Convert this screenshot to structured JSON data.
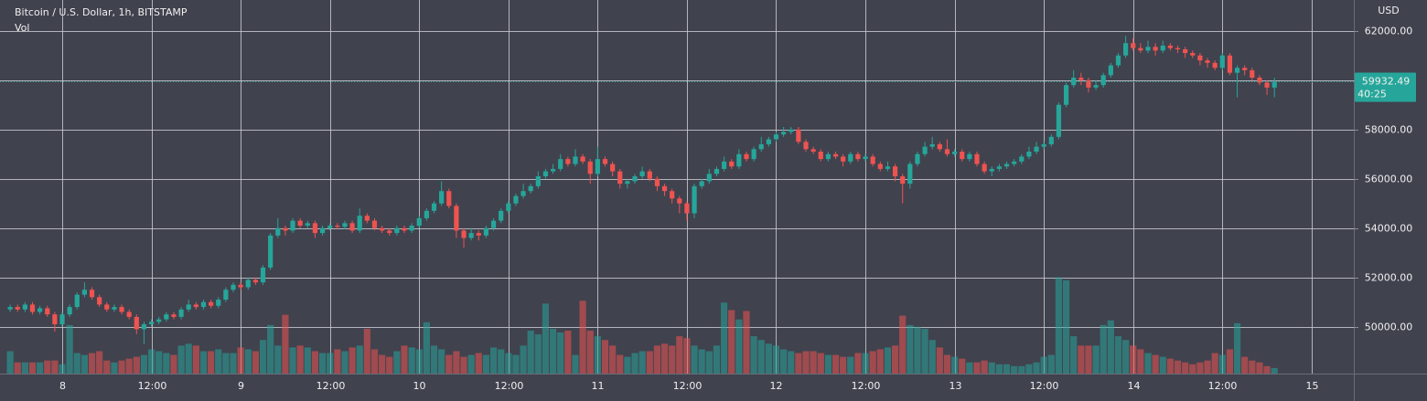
{
  "chart_data": {
    "type": "candlestick",
    "title": "Bitcoin / U.S. Dollar, 1h, BITSTAMP",
    "volume_label": "Vol",
    "currency": "USD",
    "up_color": "#26a69a",
    "down_color": "#ef5350",
    "grid": true,
    "ylim": [
      48100,
      63250
    ],
    "yticks": [
      {
        "value": 50000,
        "label": "50000.00"
      },
      {
        "value": 52000,
        "label": "52000.00"
      },
      {
        "value": 54000,
        "label": "54000.00"
      },
      {
        "value": 56000,
        "label": "56000.00"
      },
      {
        "value": 58000,
        "label": "58000.00"
      },
      {
        "value": 60000,
        "label": "60000.00"
      },
      {
        "value": 62000,
        "label": "62000.00"
      }
    ],
    "vlim": [
      0,
      400
    ],
    "last_price": 59932.49,
    "countdown": "40:25",
    "categories": [
      null,
      null,
      null,
      null,
      null,
      null,
      null,
      "8",
      null,
      null,
      null,
      null,
      null,
      null,
      null,
      null,
      null,
      null,
      null,
      "12:00",
      null,
      null,
      null,
      null,
      null,
      null,
      null,
      null,
      null,
      null,
      null,
      "9",
      null,
      null,
      null,
      null,
      null,
      null,
      null,
      null,
      null,
      null,
      null,
      "12:00",
      null,
      null,
      null,
      null,
      null,
      null,
      null,
      null,
      null,
      null,
      null,
      "10",
      null,
      null,
      null,
      null,
      null,
      null,
      null,
      null,
      null,
      null,
      null,
      "12:00",
      null,
      null,
      null,
      null,
      null,
      null,
      null,
      null,
      null,
      null,
      null,
      "11",
      null,
      null,
      null,
      null,
      null,
      null,
      null,
      null,
      null,
      null,
      null,
      "12:00",
      null,
      null,
      null,
      null,
      null,
      null,
      null,
      null,
      null,
      null,
      null,
      "12",
      null,
      null,
      null,
      null,
      null,
      null,
      null,
      null,
      null,
      null,
      null,
      "12:00",
      null,
      null,
      null,
      null,
      null,
      null,
      null,
      null,
      null,
      null,
      null,
      "13",
      null,
      null,
      null,
      null,
      null,
      null,
      null,
      null,
      null,
      null,
      null,
      "12:00",
      null,
      null,
      null,
      null,
      null,
      null,
      null,
      null,
      null,
      null,
      null,
      "14",
      null,
      null,
      null,
      null,
      null,
      null,
      null,
      null,
      null,
      null,
      null,
      "12:00",
      null,
      null,
      null,
      null,
      null,
      null,
      null,
      null,
      null,
      null,
      null,
      "15"
    ],
    "ohlc": [
      [
        50700,
        50900,
        50600,
        50800
      ],
      [
        50800,
        50900,
        50600,
        50700
      ],
      [
        50700,
        51000,
        50600,
        50900
      ],
      [
        50900,
        51000,
        50500,
        50600
      ],
      [
        50600,
        50850,
        50500,
        50750
      ],
      [
        50750,
        50850,
        50400,
        50500
      ],
      [
        50500,
        50600,
        49800,
        50100
      ],
      [
        50100,
        50600,
        50000,
        50500
      ],
      [
        50500,
        50900,
        50400,
        50800
      ],
      [
        50800,
        51400,
        50700,
        51300
      ],
      [
        51300,
        51800,
        51200,
        51500
      ],
      [
        51500,
        51600,
        51100,
        51200
      ],
      [
        51200,
        51300,
        50800,
        50900
      ],
      [
        50900,
        51000,
        50600,
        50700
      ],
      [
        50700,
        50900,
        50600,
        50800
      ],
      [
        50800,
        50900,
        50500,
        50600
      ],
      [
        50600,
        50700,
        50300,
        50400
      ],
      [
        50400,
        50500,
        49700,
        49900
      ],
      [
        49900,
        50200,
        49300,
        50100
      ],
      [
        50100,
        50300,
        50000,
        50200
      ],
      [
        50200,
        50400,
        50100,
        50300
      ],
      [
        50300,
        50600,
        50200,
        50500
      ],
      [
        50500,
        50600,
        50300,
        50400
      ],
      [
        50400,
        50800,
        50300,
        50700
      ],
      [
        50700,
        51100,
        50600,
        50900
      ],
      [
        50900,
        51000,
        50700,
        50800
      ],
      [
        50800,
        51100,
        50700,
        51000
      ],
      [
        51000,
        51100,
        50750,
        50850
      ],
      [
        50850,
        51200,
        50750,
        51100
      ],
      [
        51100,
        51600,
        51000,
        51500
      ],
      [
        51500,
        51800,
        51400,
        51700
      ],
      [
        51700,
        51800,
        51500,
        51600
      ],
      [
        51600,
        52000,
        51500,
        51900
      ],
      [
        51900,
        52000,
        51700,
        51800
      ],
      [
        51800,
        52500,
        51700,
        52400
      ],
      [
        52400,
        53800,
        52300,
        53700
      ],
      [
        53700,
        54400,
        53600,
        54000
      ],
      [
        54000,
        54100,
        53700,
        53900
      ],
      [
        53900,
        54400,
        53800,
        54300
      ],
      [
        54300,
        54400,
        54000,
        54100
      ],
      [
        54100,
        54300,
        54000,
        54200
      ],
      [
        54200,
        54300,
        53600,
        53800
      ],
      [
        53800,
        54100,
        53700,
        54000
      ],
      [
        54000,
        54200,
        53900,
        54100
      ],
      [
        54100,
        54200,
        53950,
        54050
      ],
      [
        54050,
        54300,
        53950,
        54200
      ],
      [
        54200,
        54300,
        53800,
        53900
      ],
      [
        53900,
        54800,
        53800,
        54500
      ],
      [
        54500,
        54600,
        54200,
        54300
      ],
      [
        54300,
        54400,
        53900,
        54000
      ],
      [
        54000,
        54100,
        53800,
        53900
      ],
      [
        53900,
        54000,
        53700,
        53800
      ],
      [
        53800,
        54100,
        53700,
        54000
      ],
      [
        54000,
        54100,
        53800,
        53900
      ],
      [
        53900,
        54200,
        53800,
        54100
      ],
      [
        54100,
        54500,
        54000,
        54400
      ],
      [
        54400,
        54800,
        54300,
        54700
      ],
      [
        54700,
        55100,
        54600,
        55000
      ],
      [
        55000,
        55900,
        54900,
        55500
      ],
      [
        55500,
        55600,
        54800,
        54900
      ],
      [
        54900,
        55000,
        53600,
        53900
      ],
      [
        53900,
        54000,
        53200,
        53600
      ],
      [
        53600,
        54000,
        53500,
        53800
      ],
      [
        53800,
        53900,
        53500,
        53700
      ],
      [
        53700,
        54100,
        53600,
        54000
      ],
      [
        54000,
        54400,
        53900,
        54300
      ],
      [
        54300,
        54800,
        54200,
        54700
      ],
      [
        54700,
        55100,
        54600,
        55000
      ],
      [
        55000,
        55400,
        54900,
        55300
      ],
      [
        55300,
        55800,
        55200,
        55500
      ],
      [
        55500,
        55800,
        55400,
        55700
      ],
      [
        55700,
        56300,
        55600,
        56100
      ],
      [
        56100,
        56400,
        56000,
        56300
      ],
      [
        56300,
        56600,
        56200,
        56400
      ],
      [
        56400,
        57000,
        56300,
        56800
      ],
      [
        56800,
        56900,
        56500,
        56600
      ],
      [
        56600,
        57200,
        56500,
        56900
      ],
      [
        56900,
        57000,
        56600,
        56700
      ],
      [
        56700,
        56800,
        55800,
        56200
      ],
      [
        56200,
        57300,
        56100,
        56800
      ],
      [
        56800,
        56900,
        56500,
        56600
      ],
      [
        56600,
        56700,
        56100,
        56300
      ],
      [
        56300,
        56400,
        55600,
        55800
      ],
      [
        55800,
        56000,
        55600,
        55900
      ],
      [
        55900,
        56200,
        55800,
        56100
      ],
      [
        56100,
        56500,
        56000,
        56300
      ],
      [
        56300,
        56400,
        55900,
        56000
      ],
      [
        56000,
        56100,
        55500,
        55700
      ],
      [
        55700,
        55800,
        55300,
        55500
      ],
      [
        55500,
        55600,
        55000,
        55200
      ],
      [
        55200,
        55300,
        54600,
        55000
      ],
      [
        55000,
        55100,
        54300,
        54600
      ],
      [
        54600,
        55800,
        54400,
        55700
      ],
      [
        55700,
        56000,
        55600,
        55900
      ],
      [
        55900,
        56400,
        55800,
        56200
      ],
      [
        56200,
        56500,
        56100,
        56400
      ],
      [
        56400,
        56900,
        56300,
        56700
      ],
      [
        56700,
        56800,
        56400,
        56500
      ],
      [
        56500,
        57200,
        56400,
        57000
      ],
      [
        57000,
        57100,
        56700,
        56800
      ],
      [
        56800,
        57300,
        56700,
        57200
      ],
      [
        57200,
        57700,
        57100,
        57400
      ],
      [
        57400,
        57700,
        57300,
        57600
      ],
      [
        57600,
        57900,
        57500,
        57800
      ],
      [
        57800,
        58100,
        57700,
        57900
      ],
      [
        57900,
        58100,
        57800,
        58000
      ],
      [
        58000,
        58100,
        57400,
        57500
      ],
      [
        57500,
        57600,
        57100,
        57200
      ],
      [
        57200,
        57300,
        57000,
        57100
      ],
      [
        57100,
        57200,
        56700,
        56800
      ],
      [
        56800,
        57100,
        56700,
        57000
      ],
      [
        57000,
        57100,
        56800,
        56900
      ],
      [
        56900,
        57000,
        56500,
        56700
      ],
      [
        56700,
        57100,
        56600,
        57000
      ],
      [
        57000,
        57100,
        56700,
        56800
      ],
      [
        56800,
        57000,
        56700,
        56900
      ],
      [
        56900,
        57000,
        56500,
        56600
      ],
      [
        56600,
        56700,
        56300,
        56400
      ],
      [
        56400,
        56700,
        56300,
        56500
      ],
      [
        56500,
        56600,
        55900,
        56100
      ],
      [
        56100,
        56200,
        55000,
        55800
      ],
      [
        55800,
        56700,
        55600,
        56600
      ],
      [
        56600,
        57100,
        56500,
        57000
      ],
      [
        57000,
        57500,
        56900,
        57300
      ],
      [
        57300,
        57700,
        57200,
        57400
      ],
      [
        57400,
        57500,
        57100,
        57200
      ],
      [
        57200,
        57600,
        56900,
        57000
      ],
      [
        57000,
        57200,
        56900,
        57100
      ],
      [
        57100,
        57200,
        56700,
        56800
      ],
      [
        56800,
        57100,
        56700,
        57000
      ],
      [
        57000,
        57100,
        56500,
        56600
      ],
      [
        56600,
        56700,
        56200,
        56300
      ],
      [
        56300,
        56500,
        56100,
        56400
      ],
      [
        56400,
        56600,
        56300,
        56500
      ],
      [
        56500,
        56700,
        56400,
        56600
      ],
      [
        56600,
        56800,
        56500,
        56700
      ],
      [
        56700,
        57000,
        56600,
        56900
      ],
      [
        56900,
        57300,
        56800,
        57100
      ],
      [
        57100,
        57500,
        57000,
        57300
      ],
      [
        57300,
        57500,
        57200,
        57400
      ],
      [
        57400,
        57800,
        57300,
        57700
      ],
      [
        57700,
        59100,
        57600,
        59000
      ],
      [
        59000,
        59900,
        58900,
        59800
      ],
      [
        59800,
        60400,
        59700,
        60100
      ],
      [
        60100,
        60300,
        59800,
        60000
      ],
      [
        60000,
        60100,
        59500,
        59700
      ],
      [
        59700,
        60000,
        59600,
        59800
      ],
      [
        59800,
        60300,
        59700,
        60200
      ],
      [
        60200,
        60700,
        60100,
        60600
      ],
      [
        60600,
        61100,
        60500,
        61000
      ],
      [
        61000,
        61800,
        60900,
        61500
      ],
      [
        61500,
        61700,
        61200,
        61300
      ],
      [
        61300,
        61500,
        61100,
        61200
      ],
      [
        61200,
        61600,
        61100,
        61350
      ],
      [
        61350,
        61500,
        61000,
        61200
      ],
      [
        61200,
        61600,
        61100,
        61400
      ],
      [
        61400,
        61500,
        61200,
        61300
      ],
      [
        61300,
        61400,
        61100,
        61250
      ],
      [
        61250,
        61350,
        60900,
        61100
      ],
      [
        61100,
        61200,
        60900,
        61000
      ],
      [
        61000,
        61100,
        60600,
        60800
      ],
      [
        60800,
        60900,
        60500,
        60700
      ],
      [
        60700,
        60800,
        60400,
        60500
      ],
      [
        60500,
        61100,
        60400,
        61000
      ],
      [
        61000,
        61100,
        60200,
        60300
      ],
      [
        60300,
        60600,
        59300,
        60500
      ],
      [
        60500,
        60600,
        60200,
        60400
      ],
      [
        60400,
        60500,
        60000,
        60100
      ],
      [
        60100,
        60200,
        59800,
        59900
      ],
      [
        59900,
        60000,
        59400,
        59700
      ],
      [
        59700,
        60100,
        59300,
        59932.49
      ],
      null,
      null,
      null,
      null,
      null
    ],
    "volume": [
      24,
      12,
      12,
      12,
      12,
      14,
      14,
      10,
      52,
      22,
      20,
      22,
      24,
      14,
      12,
      14,
      16,
      18,
      20,
      26,
      24,
      22,
      20,
      30,
      32,
      30,
      24,
      24,
      26,
      22,
      22,
      28,
      26,
      24,
      36,
      52,
      30,
      63,
      28,
      30,
      28,
      24,
      22,
      22,
      26,
      24,
      28,
      30,
      48,
      26,
      20,
      18,
      24,
      30,
      28,
      26,
      55,
      30,
      26,
      20,
      24,
      18,
      20,
      22,
      20,
      28,
      26,
      22,
      20,
      30,
      46,
      42,
      75,
      48,
      44,
      46,
      20,
      78,
      46,
      40,
      36,
      30,
      20,
      18,
      22,
      24,
      24,
      30,
      32,
      30,
      40,
      38,
      30,
      26,
      24,
      30,
      76,
      68,
      58,
      67,
      40,
      36,
      32,
      30,
      26,
      24,
      22,
      24,
      24,
      22,
      20,
      20,
      18,
      18,
      22,
      22,
      24,
      26,
      28,
      30,
      62,
      52,
      50,
      48,
      36,
      28,
      20,
      18,
      16,
      12,
      12,
      14,
      12,
      10,
      10,
      8,
      8,
      10,
      12,
      18,
      20,
      103,
      100,
      40,
      30,
      30,
      30,
      52,
      57,
      40,
      36,
      30,
      26,
      22,
      20,
      18,
      16,
      14,
      12,
      10,
      12,
      14,
      22,
      20,
      26,
      54,
      18,
      14,
      12,
      8,
      6,
      null,
      null,
      null,
      null,
      null
    ]
  }
}
